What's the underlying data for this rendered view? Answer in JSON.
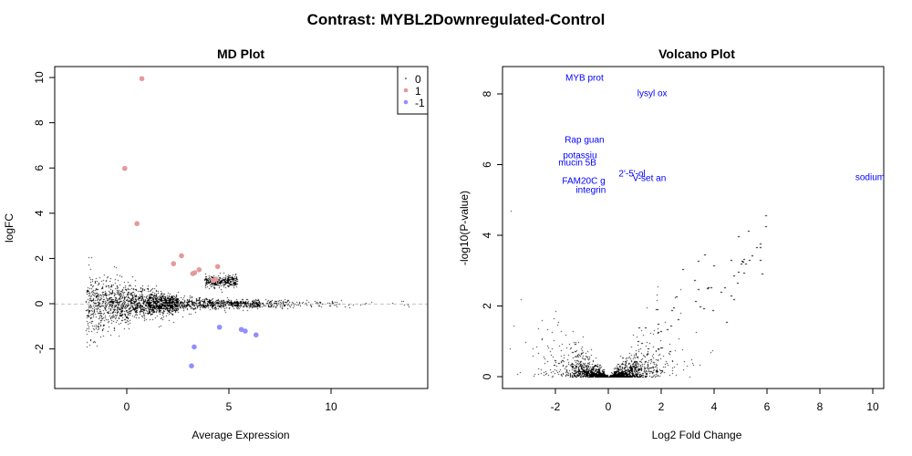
{
  "title": "Contrast: MYBL2Downregulated-Control",
  "chart_data": [
    {
      "type": "scatter",
      "title": "MD Plot",
      "xlabel": "Average Expression",
      "ylabel": "logFC",
      "xlim": [
        -3.5,
        14.8
      ],
      "ylim": [
        -3.8,
        10.4
      ],
      "xticks": [
        "0",
        "5",
        "10"
      ],
      "yticks": [
        "-2",
        "0",
        "2",
        "4",
        "6",
        "8",
        "10"
      ],
      "hline": 0,
      "legend": {
        "placement": "top-right",
        "entries": [
          {
            "label": "0",
            "color": "#000000"
          },
          {
            "label": "1",
            "color": "#e39a9a"
          },
          {
            "label": "-1",
            "color": "#8f8fff"
          }
        ]
      },
      "series": [
        {
          "name": "1",
          "color": "#e39a9a",
          "points": [
            [
              0.74,
              9.95
            ],
            [
              -0.1,
              5.98
            ],
            [
              0.5,
              3.54
            ],
            [
              2.68,
              2.12
            ],
            [
              2.29,
              1.77
            ],
            [
              3.54,
              1.5
            ],
            [
              3.32,
              1.37
            ],
            [
              3.23,
              1.33
            ],
            [
              4.45,
              1.64
            ],
            [
              4.36,
              1.08
            ],
            [
              4.23,
              1.02
            ]
          ]
        },
        {
          "name": "-1",
          "color": "#8f8fff",
          "points": [
            [
              4.54,
              -1.04
            ],
            [
              5.61,
              -1.14
            ],
            [
              5.8,
              -1.21
            ],
            [
              6.33,
              -1.38
            ],
            [
              3.3,
              -1.91
            ],
            [
              3.17,
              -2.75
            ]
          ]
        }
      ]
    },
    {
      "type": "scatter",
      "title": "Volcano Plot",
      "xlabel": "Log2 Fold Change",
      "ylabel": "-log10(P-value)",
      "xlim": [
        -3.9,
        10.5
      ],
      "ylim": [
        -0.35,
        8.75
      ],
      "xticks": [
        "-2",
        "0",
        "2",
        "4",
        "6",
        "8",
        "10"
      ],
      "yticks": [
        "0",
        "2",
        "4",
        "6",
        "8"
      ],
      "label_color": "#0000ff",
      "labels": [
        {
          "text": "MYB prot",
          "x": -0.9,
          "y": 8.46
        },
        {
          "text": "lysyl ox",
          "x": 1.66,
          "y": 8.03
        },
        {
          "text": "Rap guan",
          "x": -0.9,
          "y": 6.71
        },
        {
          "text": "potassiu",
          "x": -1.07,
          "y": 6.27
        },
        {
          "text": "mucin 5B",
          "x": -1.17,
          "y": 6.06
        },
        {
          "text": "2'-5'-ol",
          "x": 0.9,
          "y": 5.75
        },
        {
          "text": "V-set an",
          "x": 1.55,
          "y": 5.63
        },
        {
          "text": "FAM20C g",
          "x": -0.93,
          "y": 5.55
        },
        {
          "text": "integrin",
          "x": -0.66,
          "y": 5.29
        },
        {
          "text": "sodium c",
          "x": 10.03,
          "y": 5.65
        }
      ]
    }
  ]
}
